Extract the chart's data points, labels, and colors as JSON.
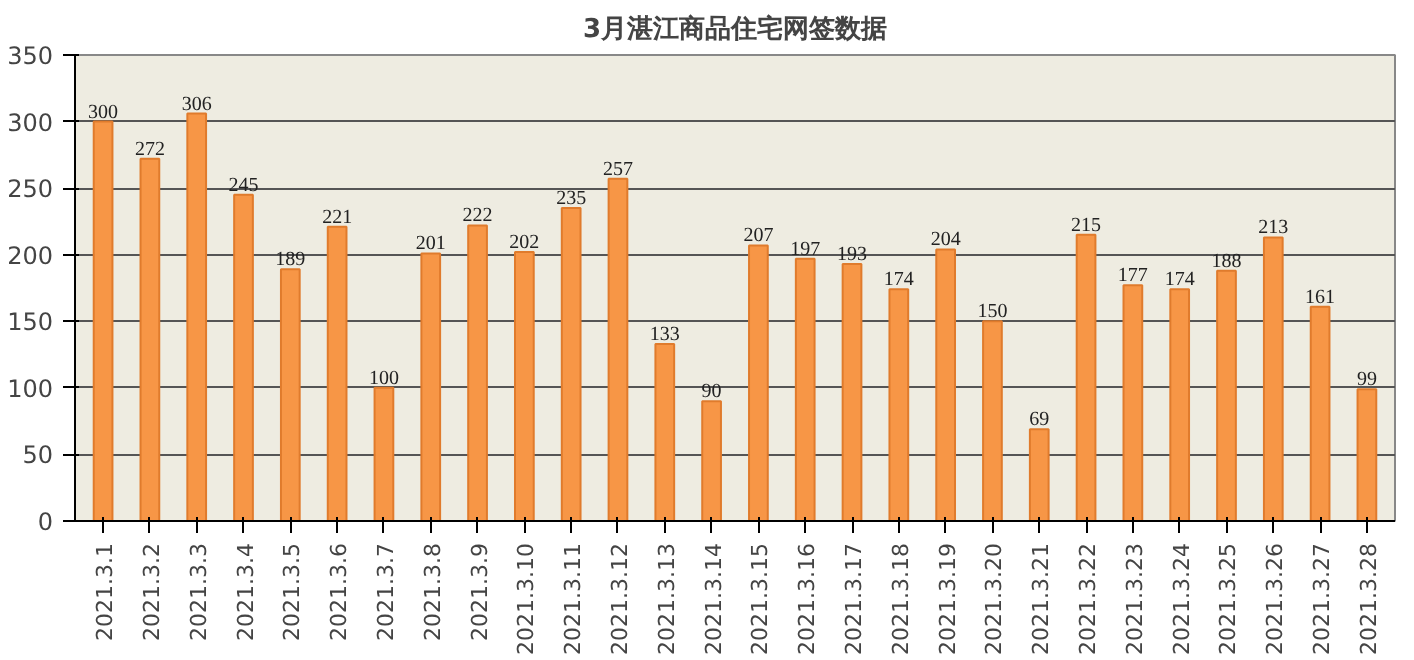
{
  "chart_data": {
    "type": "bar",
    "title": "3月湛江商品住宅网签数据",
    "categories": [
      "2021.3.1",
      "2021.3.2",
      "2021.3.3",
      "2021.3.4",
      "2021.3.5",
      "2021.3.6",
      "2021.3.7",
      "2021.3.8",
      "2021.3.9",
      "2021.3.10",
      "2021.3.11",
      "2021.3.12",
      "2021.3.13",
      "2021.3.14",
      "2021.3.15",
      "2021.3.16",
      "2021.3.17",
      "2021.3.18",
      "2021.3.19",
      "2021.3.20",
      "2021.3.21",
      "2021.3.22",
      "2021.3.23",
      "2021.3.24",
      "2021.3.25",
      "2021.3.26",
      "2021.3.27",
      "2021.3.28"
    ],
    "values": [
      300,
      272,
      306,
      245,
      189,
      221,
      100,
      201,
      222,
      202,
      235,
      257,
      133,
      90,
      207,
      197,
      193,
      174,
      204,
      150,
      69,
      215,
      177,
      174,
      188,
      213,
      161,
      99
    ],
    "color": "#f79646",
    "ylim": [
      0,
      350
    ],
    "yticks": [
      0,
      50,
      100,
      150,
      200,
      250,
      300,
      350
    ],
    "grid": "y",
    "data_labels": true
  }
}
